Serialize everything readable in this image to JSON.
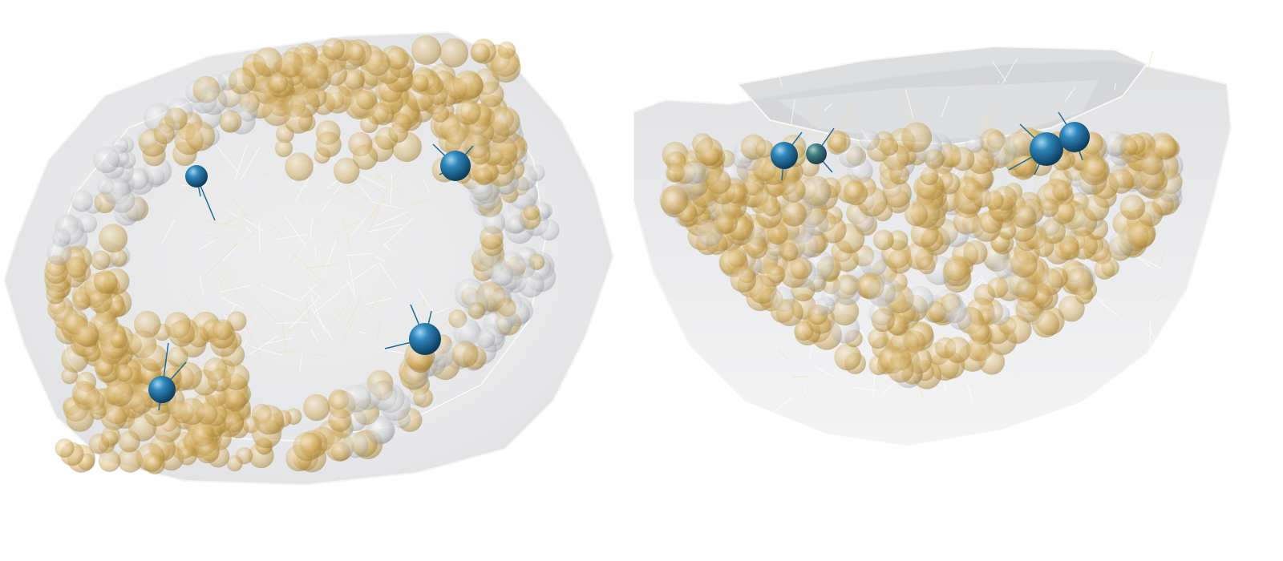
{
  "palette": {
    "background": "#ffffff",
    "membrane": "#d9dadc",
    "membrane_edge": "#f3f3f4",
    "gold_sphere": "#c9a24a",
    "gold_light": "#efdba6",
    "grey_sphere": "#a8a9ad",
    "blue_sphere": "#1f6a9a",
    "blue_highlight": "#6fb6e0",
    "fiber": "#f4e2b8"
  },
  "views": [
    {
      "id": "top-view",
      "marker_count": 4
    },
    {
      "id": "side-view",
      "marker_count": 4
    }
  ]
}
